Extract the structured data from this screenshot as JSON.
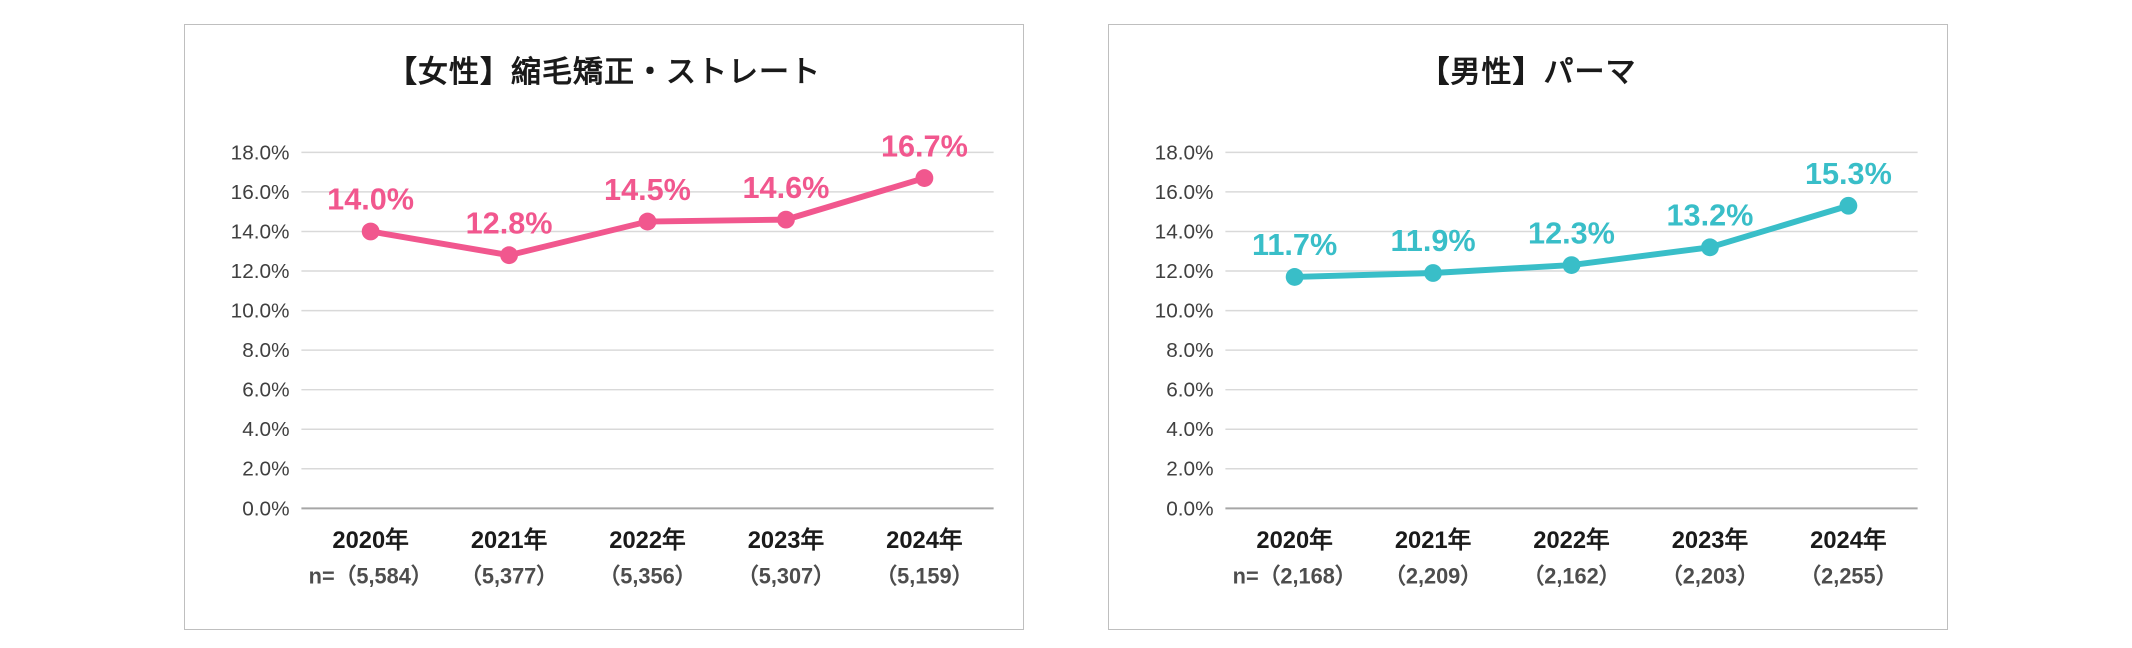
{
  "chart_data": [
    {
      "type": "line",
      "title": "【女性】縮毛矯正・ストレート",
      "color": "#F1578E",
      "categories": [
        "2020年",
        "2021年",
        "2022年",
        "2023年",
        "2024年"
      ],
      "values": [
        14.0,
        12.8,
        14.5,
        14.6,
        16.7
      ],
      "value_labels": [
        "14.0%",
        "12.8%",
        "14.5%",
        "14.6%",
        "16.7%"
      ],
      "n_labels": [
        "n=（5,584）",
        "（5,377）",
        "（5,356）",
        "（5,307）",
        "（5,159）"
      ],
      "n_values": [
        5584,
        5377,
        5356,
        5307,
        5159
      ],
      "ylim": [
        0,
        18
      ],
      "ytick_step": 2,
      "ytick_labels": [
        "0.0%",
        "2.0%",
        "4.0%",
        "6.0%",
        "8.0%",
        "10.0%",
        "12.0%",
        "14.0%",
        "16.0%",
        "18.0%"
      ],
      "grid": true,
      "legend": "none"
    },
    {
      "type": "line",
      "title": "【男性】パーマ",
      "color": "#39BEC8",
      "categories": [
        "2020年",
        "2021年",
        "2022年",
        "2023年",
        "2024年"
      ],
      "values": [
        11.7,
        11.9,
        12.3,
        13.2,
        15.3
      ],
      "value_labels": [
        "11.7%",
        "11.9%",
        "12.3%",
        "13.2%",
        "15.3%"
      ],
      "n_labels": [
        "n=（2,168）",
        "（2,209）",
        "（2,162）",
        "（2,203）",
        "（2,255）"
      ],
      "n_values": [
        2168,
        2209,
        2162,
        2203,
        2255
      ],
      "ylim": [
        0,
        18
      ],
      "ytick_step": 2,
      "ytick_labels": [
        "0.0%",
        "2.0%",
        "4.0%",
        "6.0%",
        "8.0%",
        "10.0%",
        "12.0%",
        "14.0%",
        "16.0%",
        "18.0%"
      ],
      "grid": true,
      "legend": "none"
    }
  ]
}
